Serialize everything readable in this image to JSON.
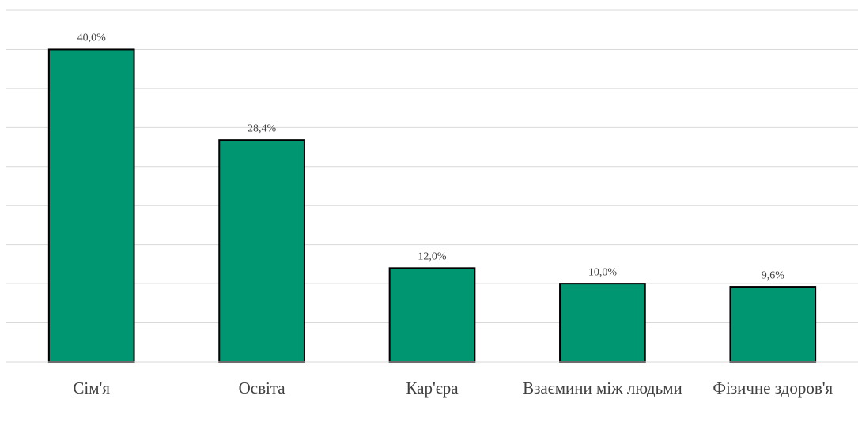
{
  "chart_data": {
    "type": "bar",
    "categories": [
      "Сім'я",
      "Освіта",
      "Кар'єра",
      "Взаємини між людьми",
      "Фізичне здоров'я"
    ],
    "values": [
      40.0,
      28.4,
      12.0,
      10.0,
      9.6
    ],
    "value_labels": [
      "40,0%",
      "28,4%",
      "12,0%",
      "10,0%",
      "9,6%"
    ],
    "color": "#009672",
    "ylim": [
      0,
      45
    ],
    "yticks": [
      0,
      5,
      10,
      15,
      20,
      25,
      30,
      35,
      40,
      45
    ],
    "grid": true
  }
}
